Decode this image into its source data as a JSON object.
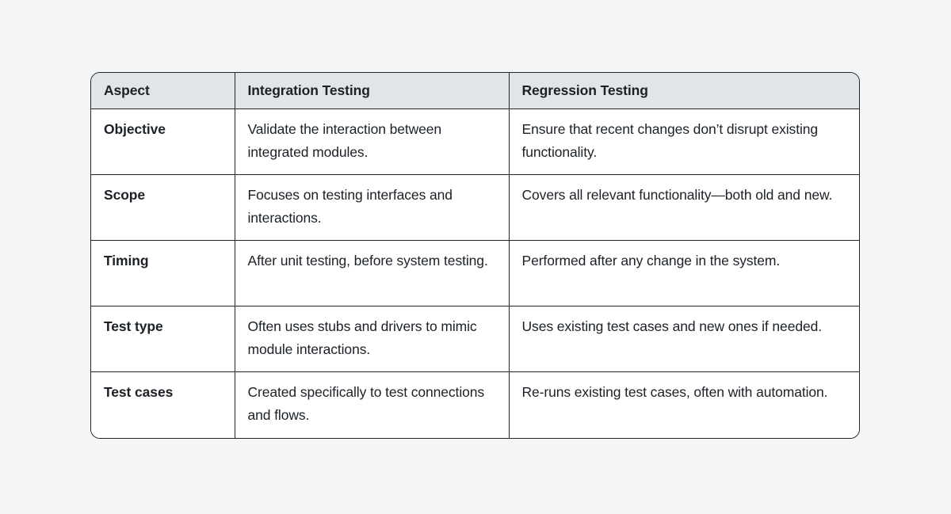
{
  "page": {
    "background_color": "#f3f5f6"
  },
  "table": {
    "header_bg_color": "#e2e5e7",
    "cell_bg_color": "#ffffff",
    "border_color": "#22262b",
    "text_color": "#1b2127",
    "headers": [
      "Aspect",
      "Integration Testing",
      "Regression Testing"
    ],
    "rows": [
      {
        "aspect": "Objective",
        "integration": "Validate the interaction between integrated modules.",
        "regression": "Ensure that recent changes don’t disrupt existing functionality."
      },
      {
        "aspect": "Scope",
        "integration": "Focuses on testing interfaces and interactions.",
        "regression": "Covers all relevant functionality—both old and new."
      },
      {
        "aspect": "Timing",
        "integration": "After unit testing, before system testing.",
        "regression": "Performed after any change in the system."
      },
      {
        "aspect": "Test type",
        "integration": "Often uses stubs and drivers to mimic module interactions.",
        "regression": "Uses existing test cases and new ones if needed."
      },
      {
        "aspect": "Test cases",
        "integration": "Created specifically to test connections and flows.",
        "regression": "Re-runs existing test cases, often with automation."
      }
    ]
  }
}
